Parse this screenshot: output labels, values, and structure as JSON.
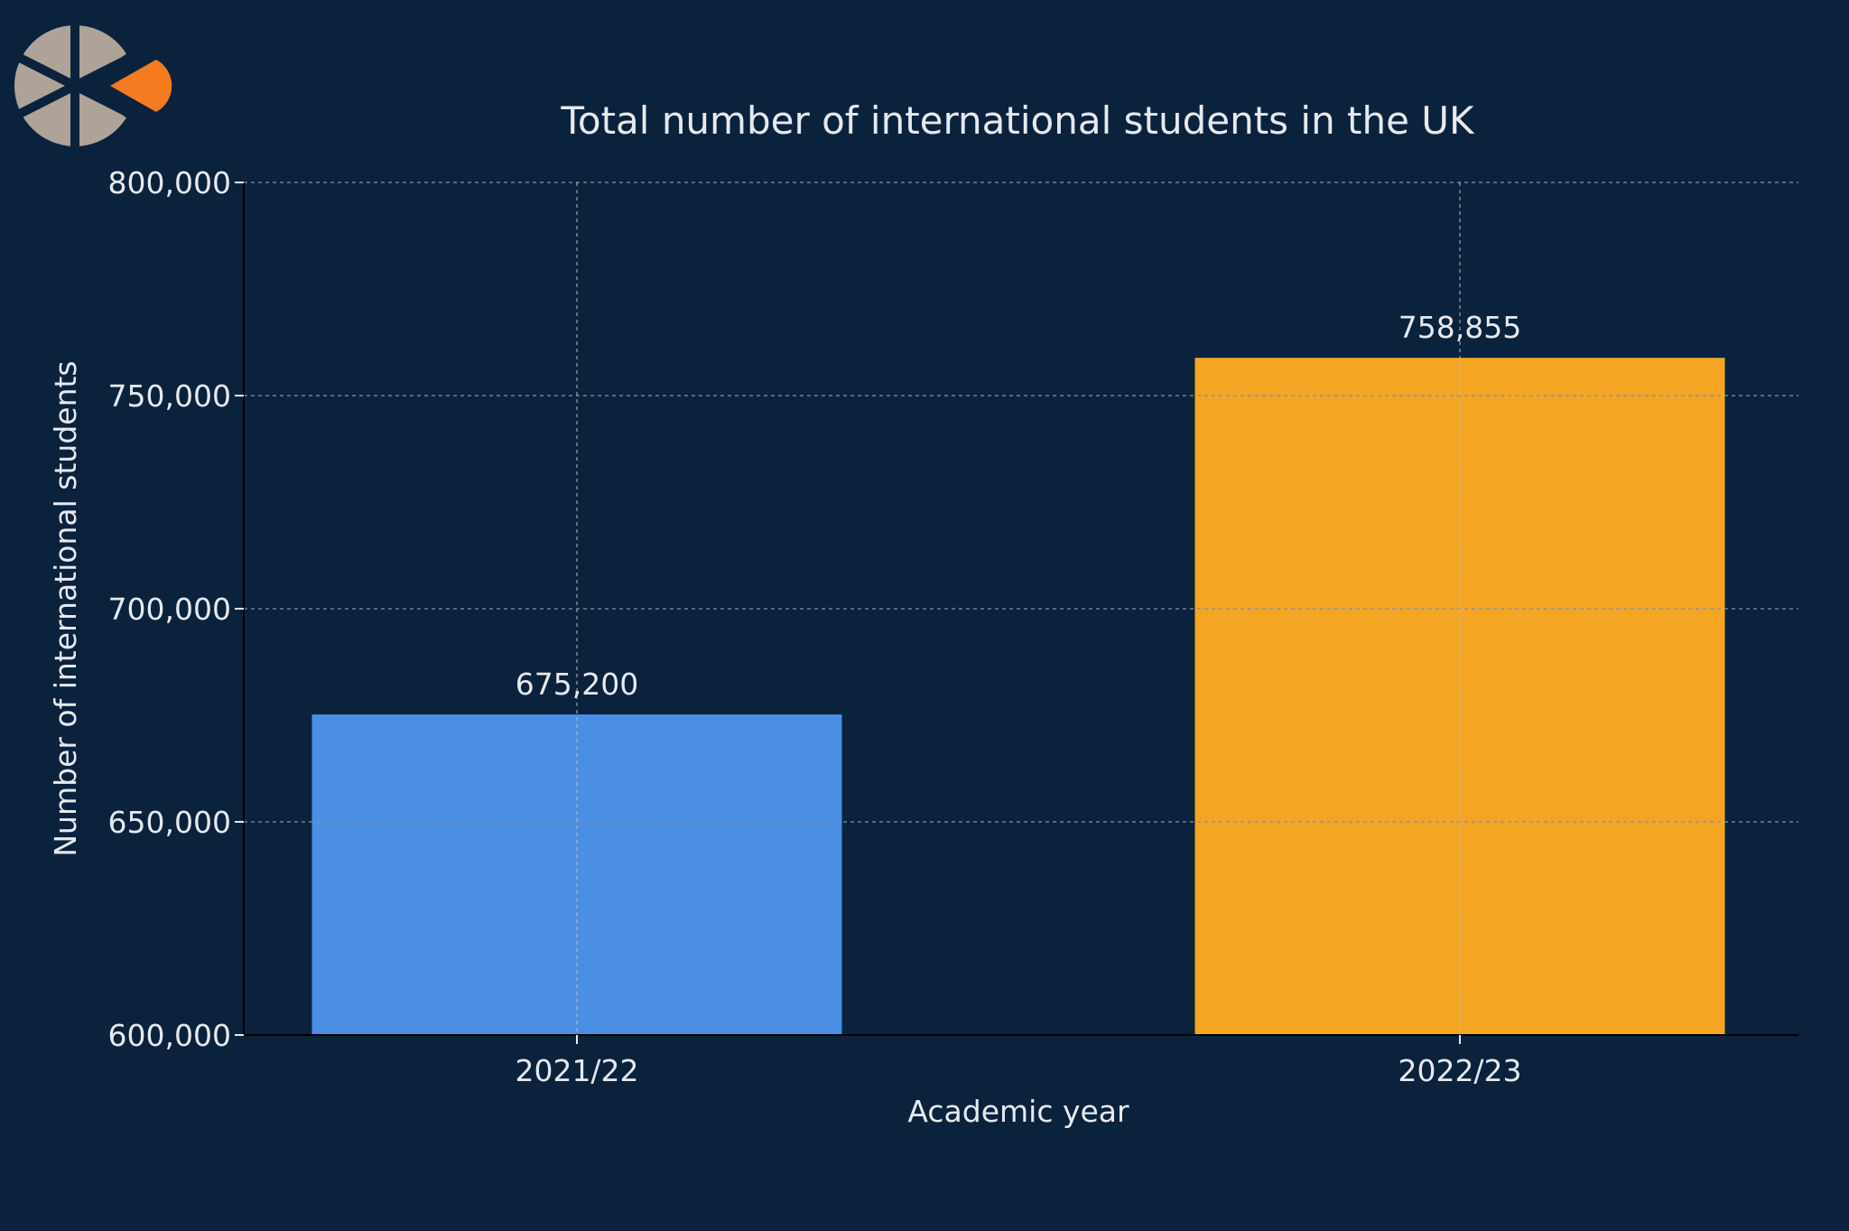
{
  "colors": {
    "background": "#0b223d",
    "text": "#e6e9ee",
    "grid": "#8391a3",
    "axis": "#000000",
    "logo_gray": "#aea398",
    "logo_orange": "#f47b20"
  },
  "logo": {
    "icon": "pinwheel-logo-icon"
  },
  "chart_data": {
    "type": "bar",
    "title": "Total number of international students in the UK",
    "xlabel": "Academic year",
    "ylabel": "Number of international students",
    "categories": [
      "2021/22",
      "2022/23"
    ],
    "values": [
      675200,
      758855
    ],
    "value_labels": [
      "675,200",
      "758,855"
    ],
    "bar_colors": [
      "#4a8fe3",
      "#f4a623"
    ],
    "ylim": [
      600000,
      800000
    ],
    "yticks": [
      600000,
      650000,
      700000,
      750000,
      800000
    ],
    "ytick_labels": [
      "600,000",
      "650,000",
      "700,000",
      "750,000",
      "800,000"
    ],
    "grid": true,
    "legend": "none"
  }
}
